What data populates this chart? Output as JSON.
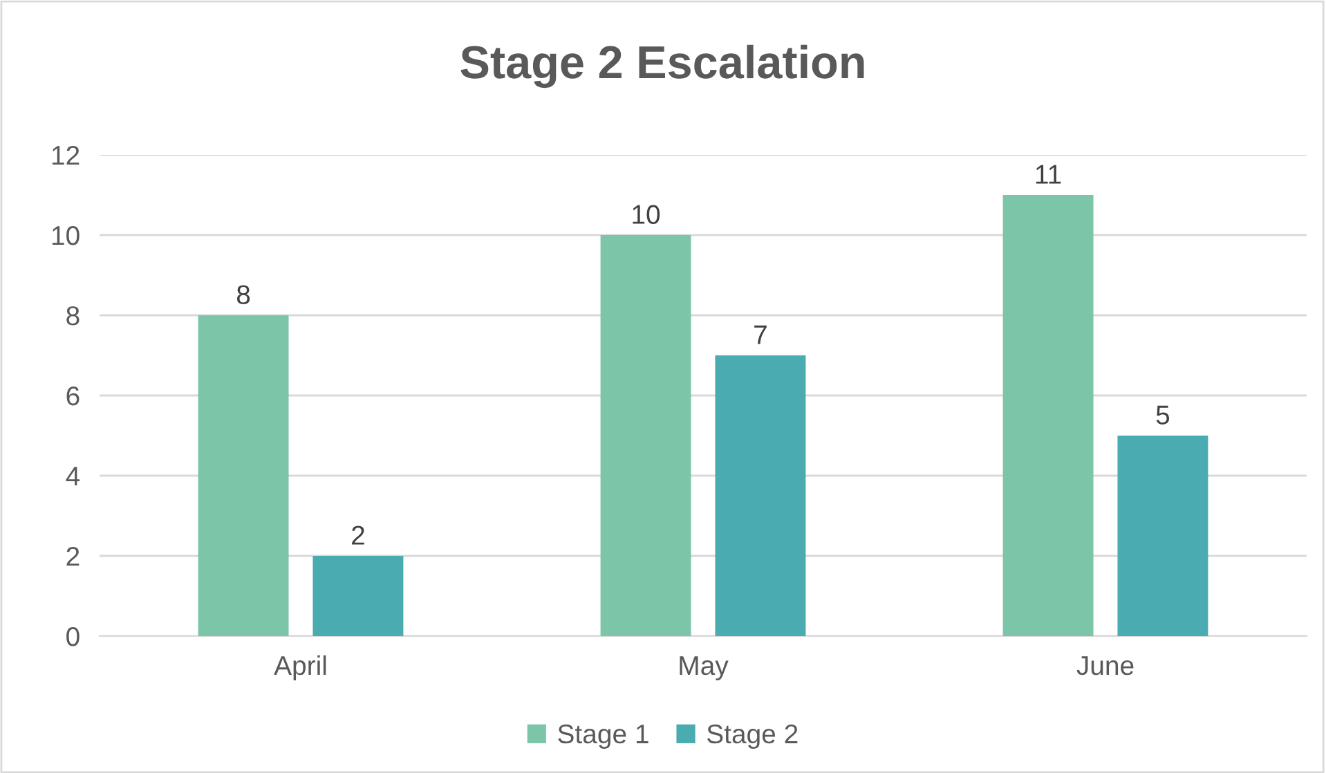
{
  "chart_data": {
    "type": "bar",
    "title": "Stage 2 Escalation",
    "categories": [
      "April",
      "May",
      "June"
    ],
    "series": [
      {
        "name": "Stage 1",
        "color": "#7dc5a8",
        "values": [
          8,
          10,
          11
        ]
      },
      {
        "name": "Stage 2",
        "color": "#4aabb0",
        "values": [
          2,
          7,
          5
        ]
      }
    ],
    "ylim": [
      0,
      12
    ],
    "yticks": [
      0,
      2,
      4,
      6,
      8,
      10,
      12
    ],
    "grid": "y",
    "legend": "bottom",
    "data_labels": true
  }
}
